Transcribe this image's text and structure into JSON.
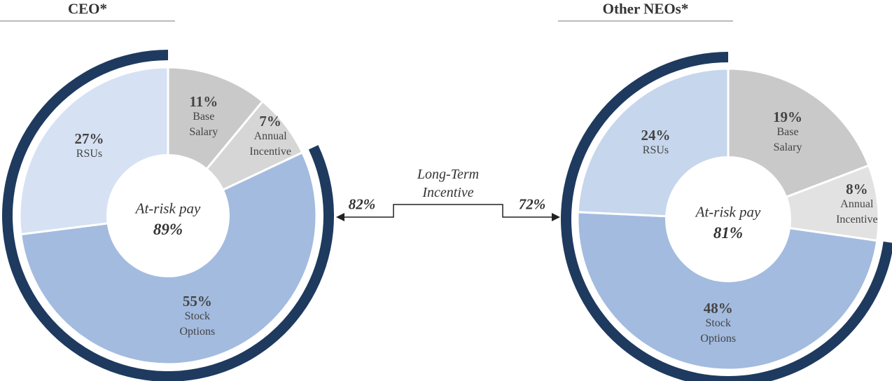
{
  "chart_data": [
    {
      "type": "pie",
      "title": "CEO*",
      "categories": [
        "Base Salary",
        "Annual Incentive",
        "Stock Options",
        "RSUs"
      ],
      "values": [
        11,
        7,
        55,
        27
      ],
      "value_labels": [
        "11%",
        "7%",
        "55%",
        "27%"
      ],
      "colors": [
        "#c9c9c9",
        "#d6d6d6",
        "#a3bbdf",
        "#d6e2f3"
      ],
      "center_label": "At-risk pay",
      "center_value": 89,
      "center_value_label": "89%",
      "ring_value": 82,
      "ring_value_label": "82%",
      "ring_color": "#1f3a5f"
    },
    {
      "type": "pie",
      "title": "Other NEOs*",
      "categories": [
        "Base Salary",
        "Annual Incentive",
        "Stock Options",
        "RSUs"
      ],
      "values": [
        19,
        8,
        48,
        24
      ],
      "value_labels": [
        "19%",
        "8%",
        "48%",
        "24%"
      ],
      "colors": [
        "#c9c9c9",
        "#e2e2e2",
        "#a3bbdf",
        "#c6d6ec"
      ],
      "center_label": "At-risk pay",
      "center_value": 81,
      "center_value_label": "81%",
      "ring_value": 72,
      "ring_value_label": "72%",
      "ring_color": "#1f3a5f"
    }
  ],
  "annotation": "Long-Term Incentive"
}
